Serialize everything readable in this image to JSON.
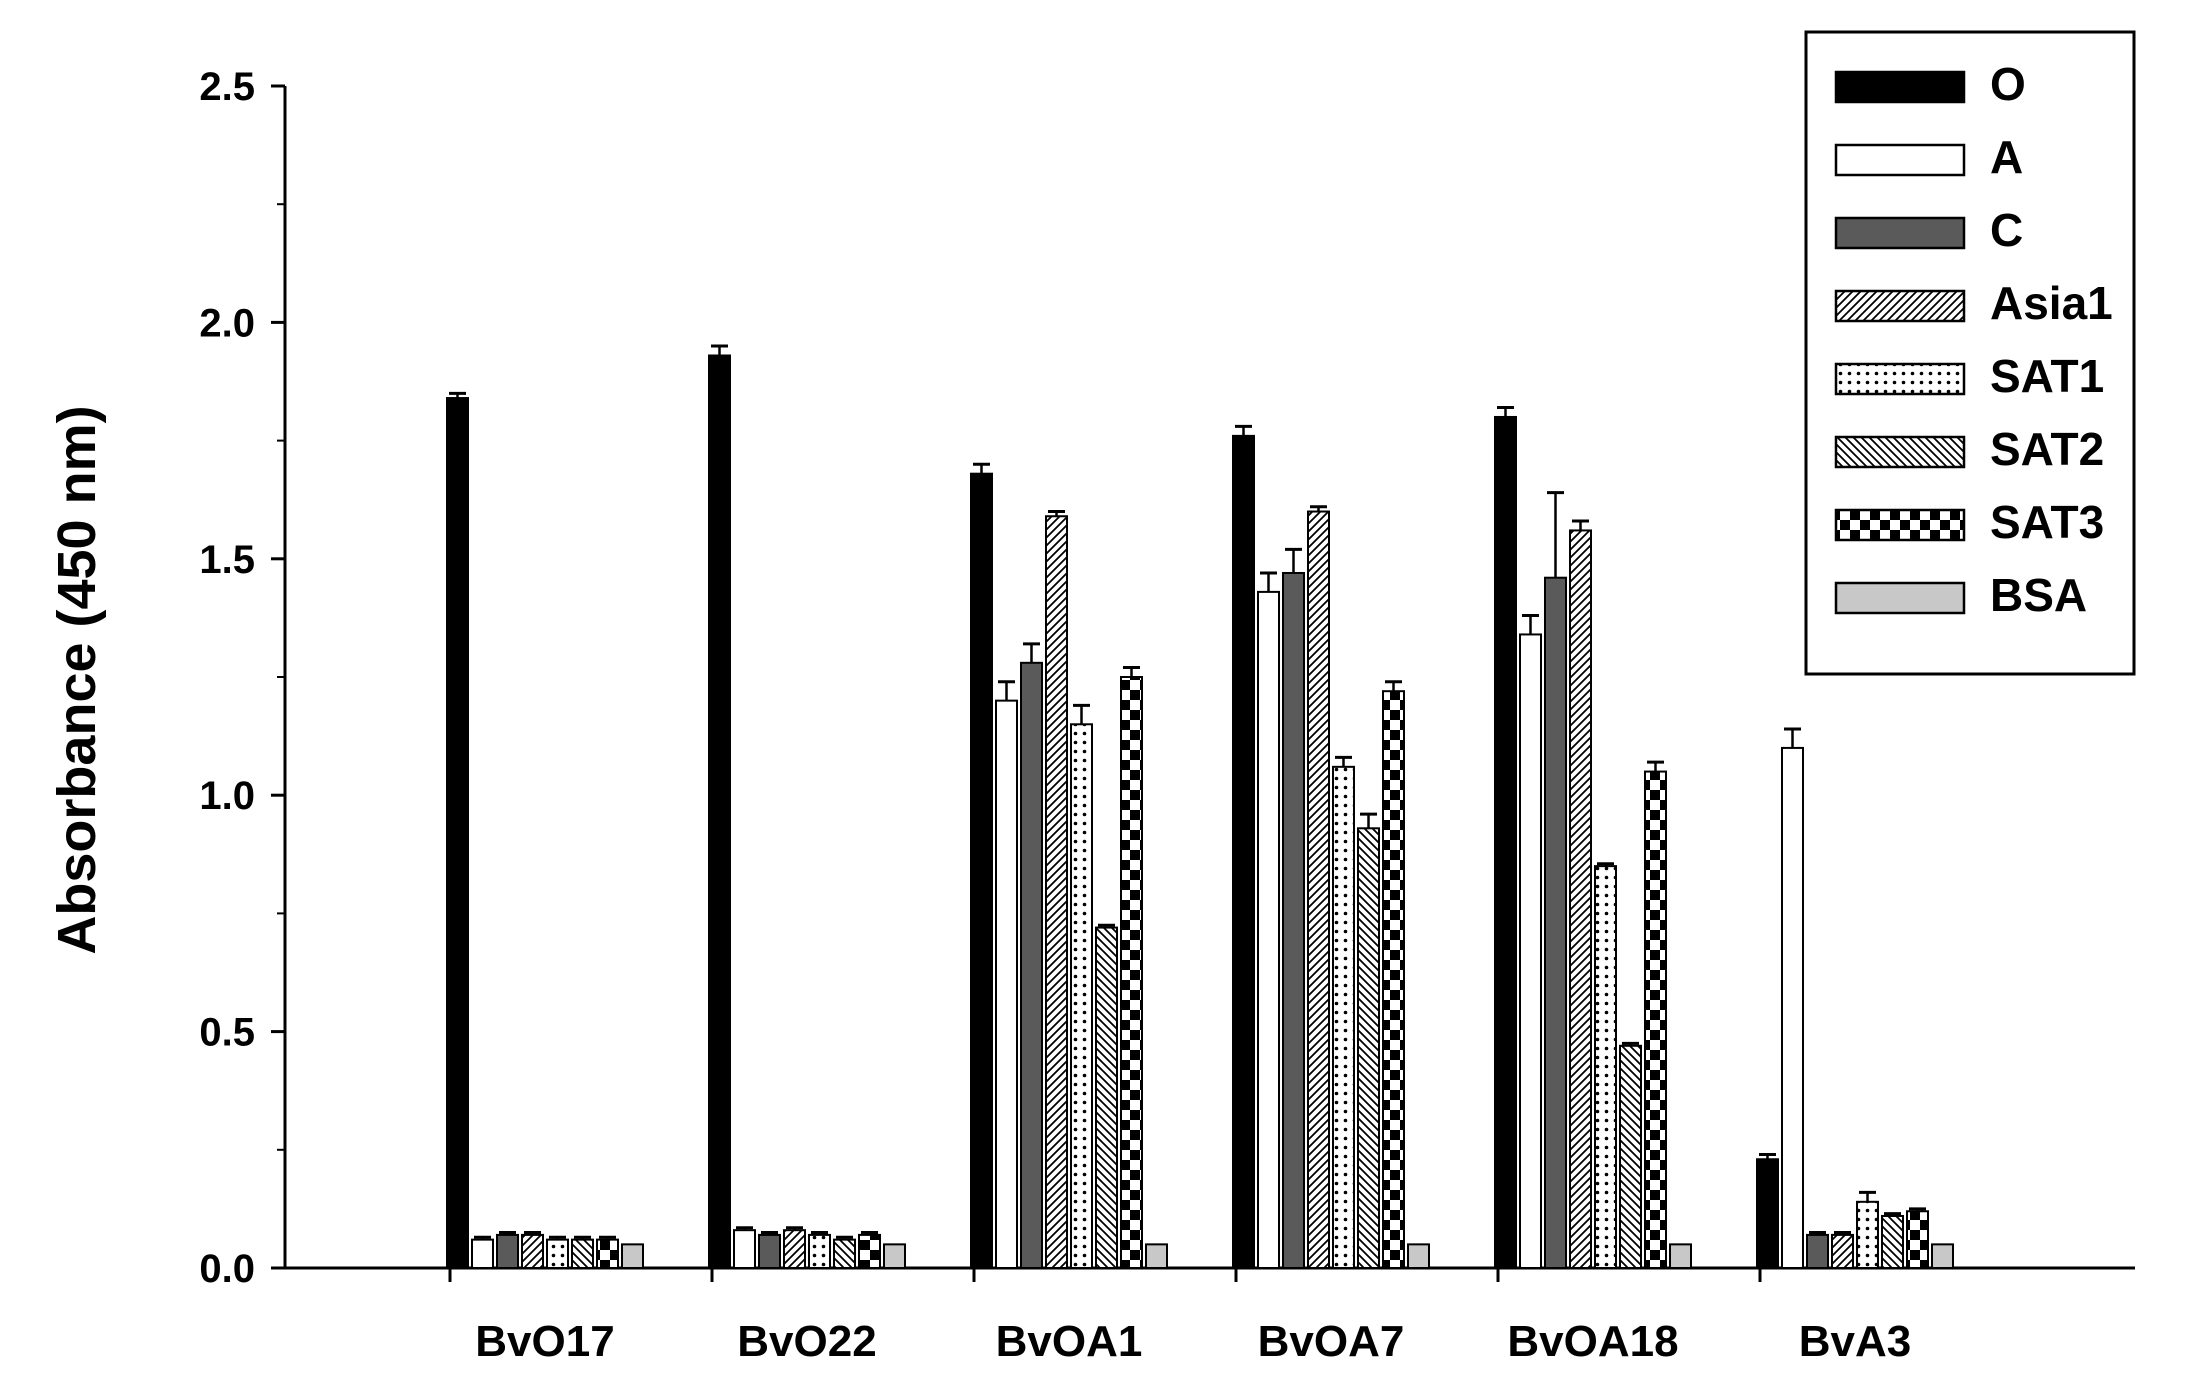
{
  "chart_data": {
    "type": "bar",
    "ylabel": "Absorbance (450 nm)",
    "xlabel": "",
    "ylim": [
      0,
      2.5
    ],
    "yticks": [
      "0.0",
      "0.5",
      "1.0",
      "1.5",
      "2.0",
      "2.5"
    ],
    "categories": [
      "BvO17",
      "BvO22",
      "BvOA1",
      "BvOA7",
      "BvOA18",
      "BvA3"
    ],
    "legend_position": "top-right",
    "grid": false,
    "series": [
      {
        "name": "O",
        "fill": "solid-black",
        "values": [
          1.84,
          1.93,
          1.68,
          1.76,
          1.8,
          0.23
        ],
        "errors": [
          0.01,
          0.02,
          0.02,
          0.02,
          0.02,
          0.01
        ]
      },
      {
        "name": "A",
        "fill": "white",
        "values": [
          0.06,
          0.08,
          1.2,
          1.43,
          1.34,
          1.1
        ],
        "errors": [
          0.005,
          0.005,
          0.04,
          0.04,
          0.04,
          0.04
        ]
      },
      {
        "name": "C",
        "fill": "dark-gray",
        "values": [
          0.07,
          0.07,
          1.28,
          1.47,
          1.46,
          0.07
        ],
        "errors": [
          0.005,
          0.005,
          0.04,
          0.05,
          0.18,
          0.005
        ]
      },
      {
        "name": "Asia1",
        "fill": "diagonal-hatch",
        "values": [
          0.07,
          0.08,
          1.59,
          1.6,
          1.56,
          0.07
        ],
        "errors": [
          0.005,
          0.005,
          0.01,
          0.01,
          0.02,
          0.005
        ]
      },
      {
        "name": "SAT1",
        "fill": "dotted",
        "values": [
          0.06,
          0.07,
          1.15,
          1.06,
          0.85,
          0.14
        ],
        "errors": [
          0.005,
          0.005,
          0.04,
          0.02,
          0.005,
          0.02
        ]
      },
      {
        "name": "SAT2",
        "fill": "back-diagonal-hatch",
        "values": [
          0.06,
          0.06,
          0.72,
          0.93,
          0.47,
          0.11
        ],
        "errors": [
          0.005,
          0.005,
          0.005,
          0.03,
          0.005,
          0.005
        ]
      },
      {
        "name": "SAT3",
        "fill": "checkered",
        "values": [
          0.06,
          0.07,
          1.25,
          1.22,
          1.05,
          0.12
        ],
        "errors": [
          0.005,
          0.005,
          0.02,
          0.02,
          0.02,
          0.005
        ]
      },
      {
        "name": "BSA",
        "fill": "light-gray",
        "values": [
          0.05,
          0.05,
          0.05,
          0.05,
          0.05,
          0.05
        ],
        "errors": [
          0,
          0,
          0,
          0,
          0,
          0
        ]
      }
    ]
  }
}
